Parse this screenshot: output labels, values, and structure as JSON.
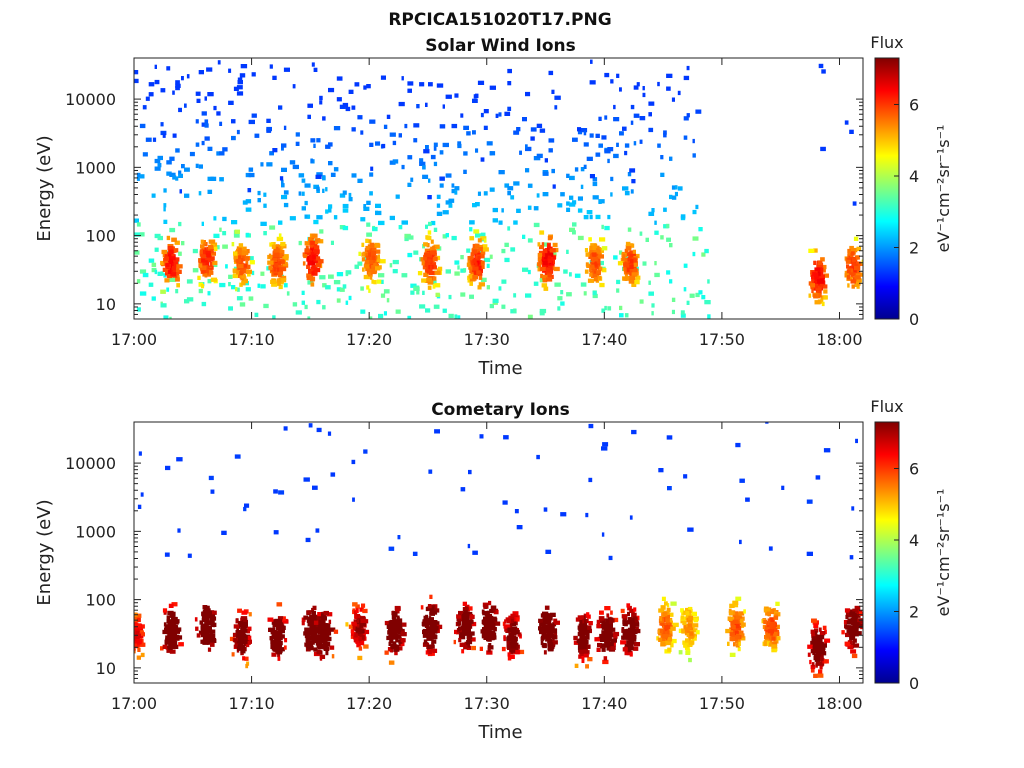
{
  "figure": {
    "title": "RPCICA151020T17.PNG"
  },
  "chart_data": [
    {
      "type": "heatmap",
      "title": "Solar Wind Ions",
      "xlabel": "Time",
      "ylabel": "Energy (eV)",
      "x_ticks": [
        "17:00",
        "17:10",
        "17:20",
        "17:30",
        "17:40",
        "17:50",
        "18:00"
      ],
      "x_range": [
        "17:00",
        "18:02"
      ],
      "y_scale": "log",
      "y_ticks": [
        10,
        100,
        1000,
        10000
      ],
      "y_range": [
        6,
        40000
      ],
      "colorbar": {
        "label": "Flux",
        "units": "eV⁻¹cm⁻²sr⁻¹s⁻¹",
        "range": [
          0,
          7.3
        ],
        "ticks": [
          0,
          2,
          4,
          6
        ]
      },
      "populations": [
        {
          "name": "solar wind",
          "time_range": [
            "17:00",
            "17:48"
          ],
          "energy_range_eV": [
            150,
            30000
          ],
          "flux_level": 1.0
        },
        {
          "name": "low-energy",
          "time_range": [
            "17:00",
            "17:49"
          ],
          "energy_range_eV": [
            6,
            150
          ],
          "flux_level": 3.2
        }
      ],
      "bursts": [
        {
          "time": "17:03",
          "peak_energy_eV": 40,
          "flux": 4.8
        },
        {
          "time": "17:06",
          "peak_energy_eV": 45,
          "flux": 4.6
        },
        {
          "time": "17:09",
          "peak_energy_eV": 40,
          "flux": 4.2
        },
        {
          "time": "17:12",
          "peak_energy_eV": 40,
          "flux": 4.4
        },
        {
          "time": "17:15",
          "peak_energy_eV": 45,
          "flux": 4.9
        },
        {
          "time": "17:20",
          "peak_energy_eV": 45,
          "flux": 4.3
        },
        {
          "time": "17:25",
          "peak_energy_eV": 40,
          "flux": 4.5
        },
        {
          "time": "17:29",
          "peak_energy_eV": 40,
          "flux": 4.6
        },
        {
          "time": "17:35",
          "peak_energy_eV": 45,
          "flux": 4.9
        },
        {
          "time": "17:39",
          "peak_energy_eV": 40,
          "flux": 4.3
        },
        {
          "time": "17:42",
          "peak_energy_eV": 40,
          "flux": 4.4
        },
        {
          "time": "17:58",
          "peak_energy_eV": 25,
          "flux": 4.8
        },
        {
          "time": "18:01",
          "peak_energy_eV": 35,
          "flux": 4.5
        }
      ]
    },
    {
      "type": "heatmap",
      "title": "Cometary Ions",
      "xlabel": "Time",
      "ylabel": "Energy (eV)",
      "x_ticks": [
        "17:00",
        "17:10",
        "17:20",
        "17:30",
        "17:40",
        "17:50",
        "18:00"
      ],
      "x_range": [
        "17:00",
        "18:02"
      ],
      "y_scale": "log",
      "y_ticks": [
        10,
        100,
        1000,
        10000
      ],
      "y_range": [
        6,
        40000
      ],
      "colorbar": {
        "label": "Flux",
        "units": "eV⁻¹cm⁻²sr⁻¹s⁻¹",
        "range": [
          0,
          7.3
        ],
        "ticks": [
          0,
          2,
          4,
          6
        ]
      },
      "bursts": [
        {
          "time": "17:00",
          "peak_energy_eV": 30,
          "flux": 5.0
        },
        {
          "time": "17:03",
          "peak_energy_eV": 35,
          "flux": 6.8
        },
        {
          "time": "17:06",
          "peak_energy_eV": 40,
          "flux": 6.9
        },
        {
          "time": "17:09",
          "peak_energy_eV": 30,
          "flux": 6.2
        },
        {
          "time": "17:12",
          "peak_energy_eV": 30,
          "flux": 6.6
        },
        {
          "time": "17:15",
          "peak_energy_eV": 35,
          "flux": 7.0
        },
        {
          "time": "17:16",
          "peak_energy_eV": 30,
          "flux": 6.8
        },
        {
          "time": "17:19",
          "peak_energy_eV": 40,
          "flux": 5.6
        },
        {
          "time": "17:22",
          "peak_energy_eV": 35,
          "flux": 6.7
        },
        {
          "time": "17:25",
          "peak_energy_eV": 40,
          "flux": 6.8
        },
        {
          "time": "17:28",
          "peak_energy_eV": 40,
          "flux": 6.4
        },
        {
          "time": "17:30",
          "peak_energy_eV": 40,
          "flux": 6.9
        },
        {
          "time": "17:32",
          "peak_energy_eV": 30,
          "flux": 6.1
        },
        {
          "time": "17:35",
          "peak_energy_eV": 35,
          "flux": 7.0
        },
        {
          "time": "17:38",
          "peak_energy_eV": 30,
          "flux": 6.3
        },
        {
          "time": "17:40",
          "peak_energy_eV": 30,
          "flux": 6.7
        },
        {
          "time": "17:42",
          "peak_energy_eV": 35,
          "flux": 6.5
        },
        {
          "time": "17:45",
          "peak_energy_eV": 40,
          "flux": 4.2
        },
        {
          "time": "17:47",
          "peak_energy_eV": 40,
          "flux": 3.8
        },
        {
          "time": "17:51",
          "peak_energy_eV": 40,
          "flux": 4.3
        },
        {
          "time": "17:54",
          "peak_energy_eV": 40,
          "flux": 4.4
        },
        {
          "time": "17:58",
          "peak_energy_eV": 20,
          "flux": 6.3
        },
        {
          "time": "18:01",
          "peak_energy_eV": 40,
          "flux": 6.4
        }
      ]
    }
  ]
}
